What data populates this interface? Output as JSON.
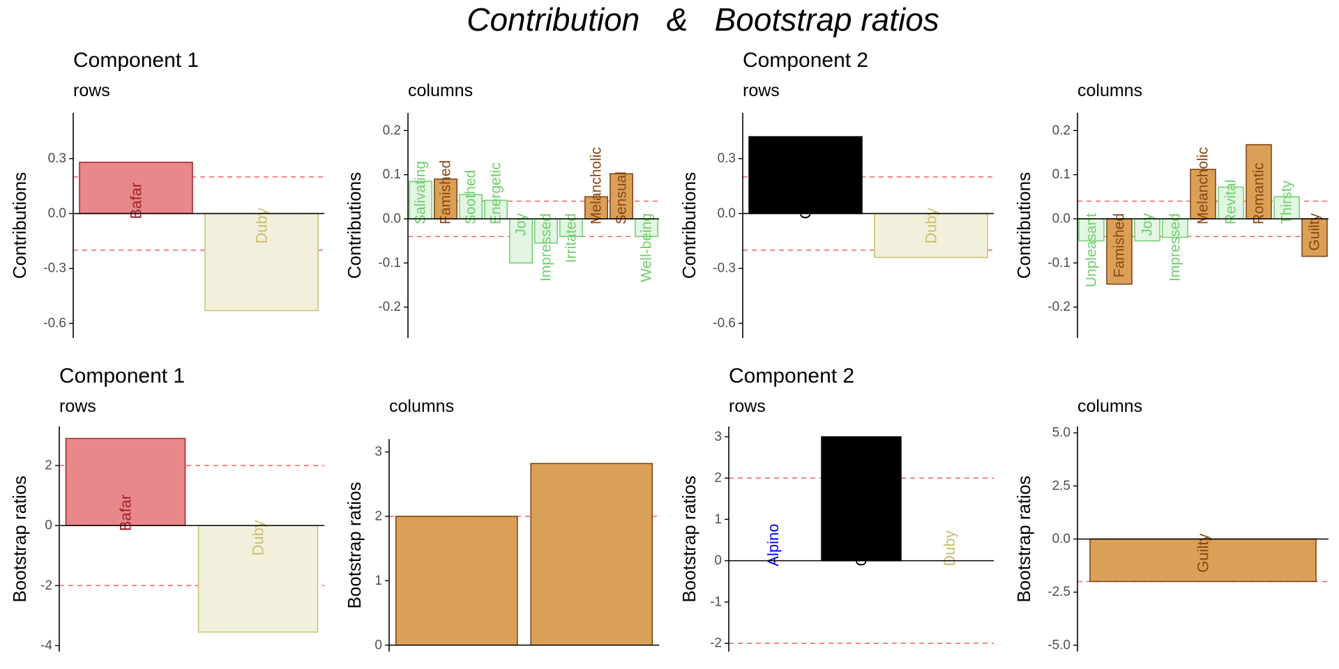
{
  "page_title": "Contribution   &   Bootstrap ratios",
  "colors": {
    "bafar_fill": "#e8888a",
    "bafar_stroke": "#a0202a",
    "duby_fill": "#f2f0dc",
    "duby_stroke": "#c8c070",
    "duby_text": "#c8c070",
    "chimex_fill": "#000000",
    "alpino_text": "#0000ee",
    "orange_fill": "#dba057",
    "orange_stroke": "#7a3e10",
    "brown_text": "#8b4513",
    "green_fill": "#e3f5e3",
    "green_stroke": "#6ccf6c",
    "green_text": "#6ccf6c",
    "threshold": "#f06060",
    "axis": "#000000",
    "tick_text": "#4d4d4d"
  },
  "chart_data": [
    {
      "type": "bar",
      "title": "Component 1",
      "subtitle": "rows",
      "ylabel": "Contributions",
      "ylim": [
        -0.68,
        0.55
      ],
      "yticks": [
        0.3,
        0.0,
        -0.3,
        -0.6
      ],
      "ytick_labels": [
        "0.3",
        "0.0",
        "-0.3",
        "-0.6"
      ],
      "thresholds": [
        0.2,
        -0.2
      ],
      "categories": [
        "Bafar",
        "Duby"
      ],
      "values": [
        0.28,
        -0.53
      ],
      "styles": [
        "bafar",
        "duby"
      ]
    },
    {
      "type": "bar",
      "title": "",
      "subtitle": "columns",
      "ylabel": "Contributions",
      "ylim": [
        -0.27,
        0.24
      ],
      "yticks": [
        0.2,
        0.1,
        0.0,
        -0.1,
        -0.2
      ],
      "ytick_labels": [
        "0.2",
        "0.1",
        "0.0",
        "-0.1",
        "-0.2"
      ],
      "thresholds": [
        0.04,
        -0.04
      ],
      "categories": [
        "Salivating",
        "Famished",
        "Soothed",
        "Energetic",
        "Joy",
        "Impressed",
        "Irritated",
        "Melancholic",
        "Sensual",
        "Well-being"
      ],
      "values": [
        0.085,
        0.09,
        0.055,
        0.042,
        -0.1,
        -0.055,
        -0.04,
        0.05,
        0.102,
        -0.04
      ],
      "styles": [
        "green",
        "orange",
        "green",
        "green",
        "green",
        "green",
        "green",
        "orange",
        "orange",
        "green"
      ]
    },
    {
      "type": "bar",
      "title": "Component 2",
      "subtitle": "rows",
      "ylabel": "Contributions",
      "ylim": [
        -0.68,
        0.55
      ],
      "yticks": [
        0.3,
        0.0,
        -0.3,
        -0.6
      ],
      "ytick_labels": [
        "0.3",
        "0.0",
        "-0.3",
        "-0.6"
      ],
      "thresholds": [
        0.2,
        -0.2
      ],
      "categories": [
        "Chimex",
        "Duby"
      ],
      "values": [
        0.42,
        -0.24
      ],
      "styles": [
        "chimex",
        "duby"
      ]
    },
    {
      "type": "bar",
      "title": "",
      "subtitle": "columns",
      "ylabel": "Contributions",
      "ylim": [
        -0.27,
        0.24
      ],
      "yticks": [
        0.2,
        0.1,
        0.0,
        -0.1,
        -0.2
      ],
      "ytick_labels": [
        "0.2",
        "0.1",
        "0.0",
        "-0.1",
        "-0.2"
      ],
      "thresholds": [
        0.04,
        -0.04
      ],
      "categories": [
        "Unpleasant",
        "Famished",
        "Joy",
        "Impressed",
        "Melancholic",
        "Revital",
        "Romantic",
        "Thirsty",
        "Guilty"
      ],
      "values": [
        -0.05,
        -0.148,
        -0.05,
        -0.042,
        0.112,
        0.072,
        0.168,
        0.05,
        -0.085
      ],
      "styles": [
        "green",
        "orange",
        "green",
        "green",
        "orange",
        "green",
        "orange",
        "green",
        "orange"
      ]
    },
    {
      "type": "bar",
      "title": "Component 1",
      "subtitle": "rows",
      "ylabel": "Bootstrap ratios",
      "ylim": [
        -4.2,
        3.3
      ],
      "yticks": [
        2,
        0,
        -2,
        -4
      ],
      "ytick_labels": [
        "2",
        "0",
        "-2",
        "-4"
      ],
      "thresholds": [
        2,
        -2
      ],
      "categories": [
        "Bafar",
        "Duby"
      ],
      "values": [
        2.9,
        -3.55
      ],
      "styles": [
        "bafar",
        "duby"
      ]
    },
    {
      "type": "bar",
      "title": "",
      "subtitle": "columns",
      "ylabel": "Bootstrap ratios",
      "ylim": [
        -0.1,
        3.2
      ],
      "yticks": [
        3,
        2,
        1,
        0
      ],
      "ytick_labels": [
        "3",
        "2",
        "1",
        "0"
      ],
      "thresholds": [
        2
      ],
      "categories": [
        "",
        ""
      ],
      "values": [
        2.0,
        2.82
      ],
      "styles": [
        "orange",
        "orange"
      ]
    },
    {
      "type": "bar",
      "title": "Component 2",
      "subtitle": "rows",
      "ylabel": "Bootstrap ratios",
      "ylim": [
        -2.2,
        3.25
      ],
      "yticks": [
        3,
        2,
        1,
        0,
        -1,
        -2
      ],
      "ytick_labels": [
        "3",
        "2",
        "1",
        "0",
        "-1",
        "-2"
      ],
      "thresholds": [
        2,
        -2
      ],
      "categories": [
        "Alpino",
        "Chimex",
        "Duby"
      ],
      "values": [
        0.0,
        3.0,
        0.0
      ],
      "styles": [
        "alpino",
        "chimex",
        "duby"
      ]
    },
    {
      "type": "bar",
      "title": "",
      "subtitle": "columns",
      "ylabel": "Bootstrap ratios",
      "ylim": [
        -5.3,
        5.3
      ],
      "yticks": [
        5.0,
        2.5,
        0.0,
        -2.5,
        -5.0
      ],
      "ytick_labels": [
        "5.0",
        "2.5",
        "0.0",
        "-2.5",
        "-5.0"
      ],
      "thresholds": [
        -2
      ],
      "categories": [
        "Guilty"
      ],
      "values": [
        -2.0
      ],
      "styles": [
        "orange"
      ]
    }
  ]
}
